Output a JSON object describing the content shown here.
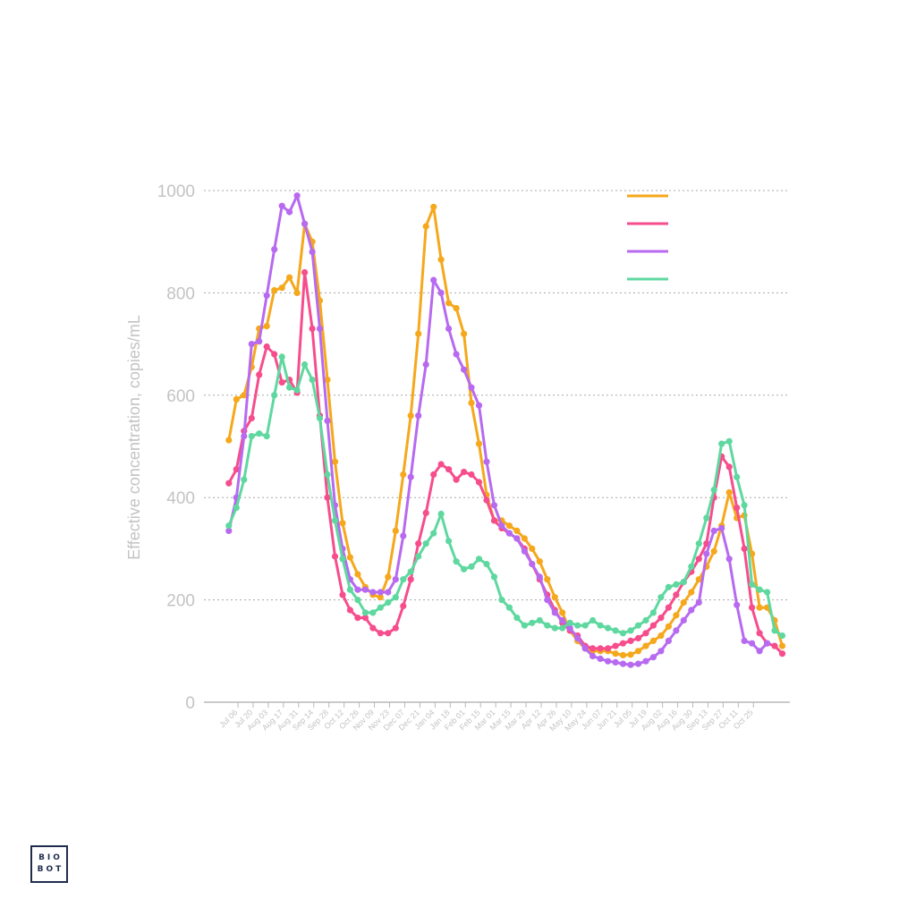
{
  "chart_data": {
    "type": "line",
    "title": "",
    "xlabel": "",
    "ylabel": "Effective concentration, copies/mL",
    "ylim": [
      0,
      1000
    ],
    "yticks": [
      0,
      200,
      400,
      600,
      800,
      1000
    ],
    "grid": "horizontal dotted",
    "legend": "top-right",
    "x_tick_labels": [
      "Jul 06",
      "Jul 20",
      "Aug 03",
      "Aug 17",
      "Aug 31",
      "Sep 14",
      "Sep 28",
      "Oct 12",
      "Oct 26",
      "Nov 09",
      "Nov 23",
      "Dec 07",
      "Dec 21",
      "Jan 04",
      "Jan 18",
      "Feb 01",
      "Feb 15",
      "Mar 01",
      "Mar 15",
      "Mar 29",
      "Apr 12",
      "Apr 26",
      "May 10",
      "May 24",
      "Jun 07",
      "Jun 21",
      "Jul 05",
      "Jul 19",
      "Aug 02",
      "Aug 16",
      "Aug 30",
      "Sep 13",
      "Sep 27",
      "Oct 11",
      "Oct 25"
    ],
    "x_start_offset_weeks": -1.2,
    "series": [
      {
        "color": "#f5a81c",
        "values": [
          512,
          592,
          600,
          655,
          730,
          735,
          805,
          810,
          830,
          800,
          935,
          900,
          785,
          630,
          470,
          350,
          283,
          250,
          225,
          210,
          205,
          245,
          335,
          445,
          560,
          720,
          930,
          968,
          865,
          780,
          770,
          720,
          585,
          505,
          405,
          355,
          355,
          345,
          335,
          320,
          300,
          275,
          240,
          205,
          175,
          140,
          120,
          105,
          100,
          100,
          100,
          95,
          92,
          93,
          100,
          110,
          120,
          130,
          148,
          170,
          195,
          215,
          240,
          265,
          295,
          345,
          410,
          360,
          365,
          290,
          185,
          185,
          160,
          110
        ]
      },
      {
        "color": "#f64d8c",
        "values": [
          428,
          455,
          530,
          555,
          640,
          695,
          680,
          625,
          630,
          605,
          840,
          730,
          560,
          400,
          285,
          210,
          180,
          165,
          165,
          145,
          135,
          135,
          145,
          188,
          240,
          310,
          370,
          445,
          465,
          455,
          435,
          450,
          445,
          430,
          395,
          355,
          340,
          330,
          320,
          300,
          270,
          240,
          210,
          180,
          155,
          140,
          130,
          110,
          105,
          105,
          105,
          110,
          115,
          120,
          125,
          135,
          150,
          165,
          185,
          210,
          235,
          255,
          280,
          310,
          400,
          480,
          460,
          380,
          300,
          185,
          135,
          115,
          110,
          95
        ]
      },
      {
        "color": "#b76af0",
        "values": [
          335,
          400,
          520,
          700,
          705,
          795,
          885,
          970,
          958,
          990,
          935,
          880,
          730,
          550,
          385,
          300,
          240,
          220,
          220,
          215,
          215,
          215,
          240,
          325,
          440,
          560,
          660,
          825,
          800,
          730,
          680,
          650,
          615,
          580,
          470,
          385,
          345,
          330,
          320,
          295,
          270,
          245,
          200,
          175,
          160,
          145,
          125,
          105,
          90,
          85,
          80,
          78,
          75,
          73,
          75,
          80,
          88,
          100,
          120,
          140,
          160,
          180,
          195,
          290,
          335,
          340,
          280,
          190,
          120,
          115,
          100,
          115
        ]
      },
      {
        "color": "#5fd8a0",
        "values": [
          345,
          380,
          435,
          520,
          525,
          520,
          600,
          675,
          615,
          610,
          660,
          630,
          555,
          445,
          355,
          280,
          220,
          200,
          175,
          175,
          185,
          195,
          205,
          240,
          255,
          285,
          310,
          330,
          368,
          315,
          275,
          260,
          265,
          280,
          270,
          245,
          200,
          185,
          165,
          150,
          155,
          160,
          150,
          145,
          145,
          155,
          150,
          150,
          160,
          150,
          145,
          140,
          135,
          140,
          150,
          160,
          175,
          205,
          225,
          230,
          235,
          265,
          310,
          360,
          415,
          505,
          510,
          440,
          385,
          230,
          220,
          215,
          140,
          130
        ]
      }
    ]
  },
  "logo": {
    "line1": "BIO",
    "line2": "BOT"
  }
}
